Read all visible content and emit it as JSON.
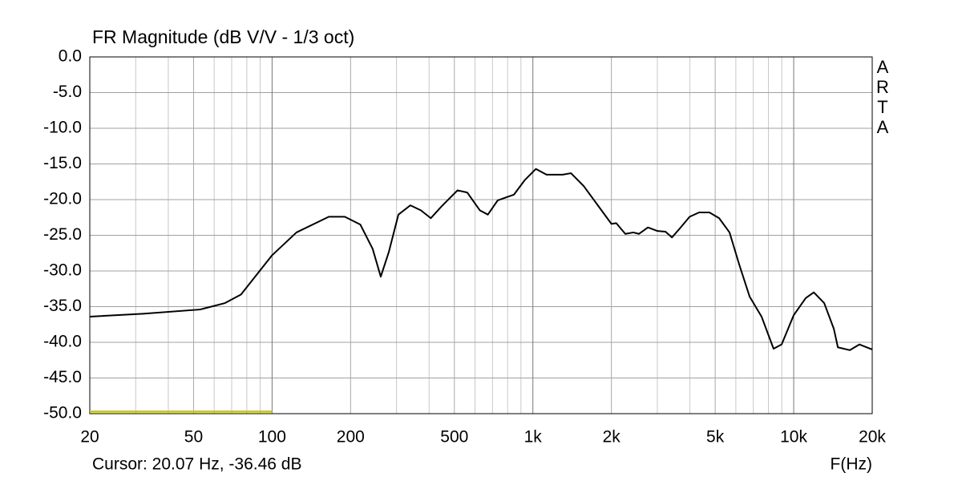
{
  "chart_data": {
    "type": "line",
    "title": "FR Magnitude (dB V/V - 1/3 oct)",
    "watermark": [
      "A",
      "R",
      "T",
      "A"
    ],
    "status": "Cursor: 20.07 Hz, -36.46 dB",
    "x_label": "F(Hz)",
    "xscale": "log",
    "grid": true,
    "xlim": [
      20,
      20000
    ],
    "ylim": [
      -50,
      0
    ],
    "xticks": [
      20,
      50,
      100,
      200,
      500,
      {
        "value": 1000,
        "label": "1k"
      },
      {
        "value": 2000,
        "label": "2k"
      },
      {
        "value": 5000,
        "label": "5k"
      },
      {
        "value": 10000,
        "label": "10k"
      },
      {
        "value": 20000,
        "label": "20k"
      }
    ],
    "yticks": [
      {
        "value": 0,
        "label": "0.0"
      },
      {
        "value": -5,
        "label": "-5.0"
      },
      {
        "value": -10,
        "label": "-10.0"
      },
      {
        "value": -15,
        "label": "-15.0"
      },
      {
        "value": -20,
        "label": "-20.0"
      },
      {
        "value": -25,
        "label": "-25.0"
      },
      {
        "value": -30,
        "label": "-30.0"
      },
      {
        "value": -35,
        "label": "-35.0"
      },
      {
        "value": -40,
        "label": "-40.0"
      },
      {
        "value": -45,
        "label": "-45.0"
      },
      {
        "value": -50,
        "label": "-50.0"
      }
    ],
    "series": [
      {
        "color": "#000000",
        "x": [
          20,
          32,
          53,
          66,
          76,
          100,
          124,
          165,
          190,
          218,
          243,
          261,
          280,
          305,
          339,
          372,
          406,
          445,
          514,
          560,
          626,
          672,
          733,
          846,
          929,
          1027,
          1128,
          1300,
          1400,
          1566,
          1766,
          2000,
          2088,
          2261,
          2427,
          2552,
          2761,
          3006,
          3224,
          3413,
          3666,
          3990,
          4337,
          4753,
          5176,
          5675,
          6182,
          6777,
          7530,
          8371,
          8991,
          10000,
          11120,
          11940,
          13090,
          14250,
          14770,
          16420,
          17870,
          20000
        ],
        "values": [
          -36.4,
          -36.0,
          -35.4,
          -34.5,
          -33.3,
          -27.8,
          -24.6,
          -22.4,
          -22.4,
          -23.5,
          -26.9,
          -30.8,
          -27.4,
          -22.1,
          -20.8,
          -21.5,
          -22.6,
          -21.0,
          -18.7,
          -19.0,
          -21.5,
          -22.1,
          -20.1,
          -19.3,
          -17.3,
          -15.7,
          -16.5,
          -16.5,
          -16.3,
          -18.1,
          -20.7,
          -23.4,
          -23.3,
          -24.8,
          -24.6,
          -24.8,
          -23.9,
          -24.4,
          -24.5,
          -25.3,
          -24.0,
          -22.4,
          -21.8,
          -21.8,
          -22.6,
          -24.6,
          -29.1,
          -33.6,
          -36.4,
          -40.9,
          -40.3,
          -36.2,
          -33.8,
          -33.0,
          -34.5,
          -38.1,
          -40.7,
          -41.1,
          -40.3,
          -41.0
        ]
      },
      {
        "color": "#c8c800",
        "x": [
          20,
          100
        ],
        "values": [
          -49.7,
          -49.7
        ]
      }
    ]
  }
}
